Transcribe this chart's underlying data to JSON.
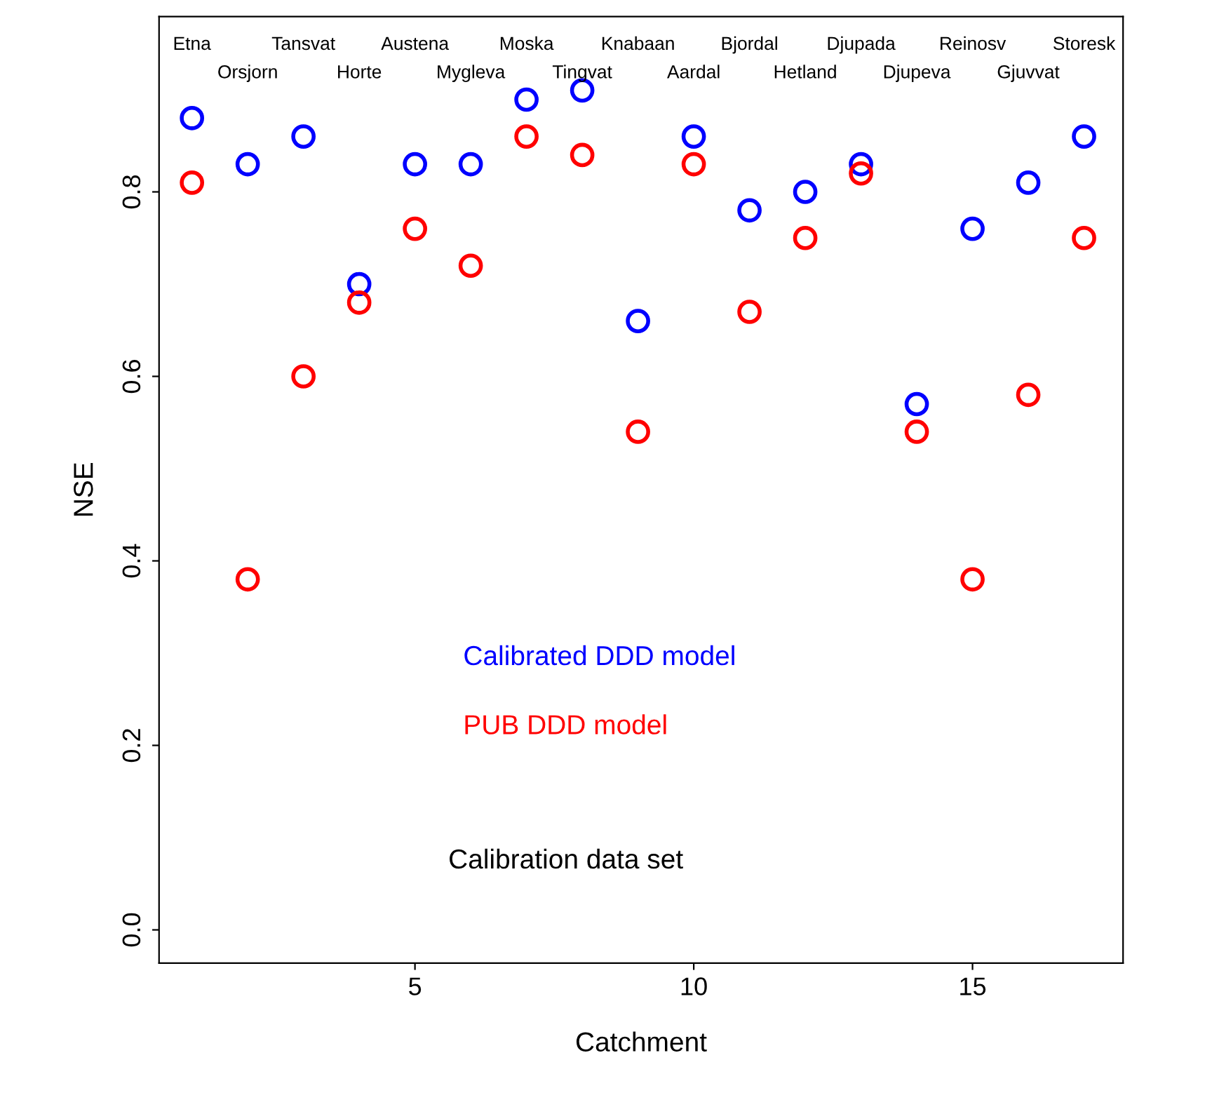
{
  "chart_data": {
    "type": "scatter",
    "xlabel": "Catchment",
    "ylabel": "NSE",
    "x": [
      1,
      2,
      3,
      4,
      5,
      6,
      7,
      8,
      9,
      10,
      11,
      12,
      13,
      14,
      15,
      16,
      17
    ],
    "series": [
      {
        "name": "Calibrated DDD model",
        "color": "#0000ff",
        "values": [
          0.88,
          0.83,
          0.86,
          0.7,
          0.83,
          0.83,
          0.9,
          0.91,
          0.66,
          0.86,
          0.78,
          0.8,
          0.83,
          0.57,
          0.76,
          0.81,
          0.86
        ]
      },
      {
        "name": "PUB DDD model",
        "color": "#ff0000",
        "values": [
          0.81,
          0.38,
          0.6,
          0.68,
          0.76,
          0.72,
          0.86,
          0.84,
          0.54,
          0.83,
          0.67,
          0.75,
          0.82,
          0.54,
          0.38,
          0.58,
          0.75
        ]
      }
    ],
    "marker": "circle",
    "grid": false,
    "legend": "bottom",
    "xlim": [
      0.41,
      17.7
    ],
    "ylim": [
      -0.036,
      0.99
    ],
    "xticks": [
      5,
      10,
      15
    ],
    "yticks": [
      {
        "value": 0.0,
        "label": "0.0"
      },
      {
        "value": 0.2,
        "label": "0.2"
      },
      {
        "value": 0.4,
        "label": "0.4"
      },
      {
        "value": 0.6,
        "label": "0.6"
      },
      {
        "value": 0.8,
        "label": "0.8"
      }
    ],
    "annotations": [
      "Etna",
      "Orsjorn",
      "Tansvat",
      "Horte",
      "Austena",
      "Mygleva",
      "Moska",
      "Tingvat",
      "Knabaan",
      "Aardal",
      "Bjordal",
      "Hetland",
      "Djupada",
      "Djupeva",
      "Reinosv",
      "Gjuvvat",
      "Storesk",
      "Calibration data set"
    ]
  }
}
